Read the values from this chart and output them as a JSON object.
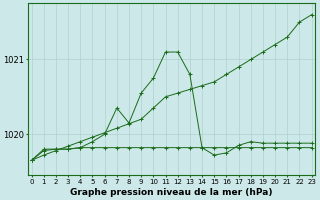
{
  "title": "Graphe pression niveau de la mer (hPa)",
  "bg_color": "#cce8e8",
  "line_color": "#1a6b1a",
  "grid_color": "#b0d0d0",
  "hours": [
    0,
    1,
    2,
    3,
    4,
    5,
    6,
    7,
    8,
    9,
    10,
    11,
    12,
    13,
    14,
    15,
    16,
    17,
    18,
    19,
    20,
    21,
    22,
    23
  ],
  "series_flat": [
    1019.65,
    1019.8,
    1019.8,
    1019.8,
    1019.82,
    1019.82,
    1019.82,
    1019.82,
    1019.82,
    1019.82,
    1019.82,
    1019.82,
    1019.82,
    1019.82,
    1019.82,
    1019.82,
    1019.82,
    1019.82,
    1019.82,
    1019.82,
    1019.82,
    1019.82,
    1019.82,
    1019.82
  ],
  "series_peak": [
    1019.65,
    1019.78,
    1019.8,
    1019.8,
    1019.82,
    1019.9,
    1020.0,
    1020.35,
    1020.15,
    1020.55,
    1020.75,
    1021.1,
    1021.1,
    1020.8,
    1019.82,
    1019.72,
    1019.75,
    1019.85,
    1019.9,
    1019.88,
    1019.88,
    1019.88,
    1019.88,
    1019.88
  ],
  "series_diag": [
    1019.65,
    1019.72,
    1019.78,
    1019.84,
    1019.9,
    1019.96,
    1020.02,
    1020.08,
    1020.14,
    1020.2,
    1020.35,
    1020.5,
    1020.55,
    1020.6,
    1020.65,
    1020.7,
    1020.8,
    1020.9,
    1021.0,
    1021.1,
    1021.2,
    1021.3,
    1021.5,
    1021.6
  ],
  "ylim_min": 1019.45,
  "ylim_max": 1021.75,
  "yticks": [
    1020,
    1021
  ],
  "xticks": [
    0,
    1,
    2,
    3,
    4,
    5,
    6,
    7,
    8,
    9,
    10,
    11,
    12,
    13,
    14,
    15,
    16,
    17,
    18,
    19,
    20,
    21,
    22,
    23
  ],
  "title_fontsize": 6.5,
  "tick_fontsize": 5.0
}
